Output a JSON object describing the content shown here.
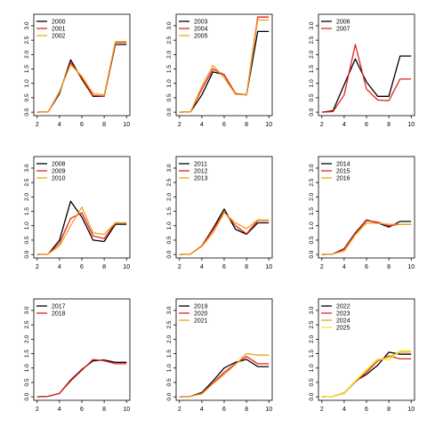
{
  "colors": {
    "black": "#000000",
    "red": "#e8211c",
    "orange": "#f0a020",
    "yellow": "#f2ef30",
    "axis": "#000000"
  },
  "chart_data": [
    {
      "type": "line",
      "x": [
        2,
        3,
        4,
        5,
        6,
        7,
        8,
        9,
        10
      ],
      "ylim": [
        0,
        3.4
      ],
      "yticks": [
        "0.0",
        "0.5",
        "1.0",
        "1.5",
        "2.0",
        "2.5",
        "3.0"
      ],
      "xticks": [
        "2",
        "4",
        "6",
        "8",
        "10"
      ],
      "series": [
        {
          "name": "2000",
          "color": "black",
          "values": [
            0.0,
            0.02,
            0.65,
            1.82,
            1.15,
            0.55,
            0.55,
            2.35,
            2.35
          ]
        },
        {
          "name": "2001",
          "color": "red",
          "values": [
            0.0,
            0.02,
            0.7,
            1.72,
            1.2,
            0.58,
            0.55,
            2.42,
            2.42
          ]
        },
        {
          "name": "2002",
          "color": "orange",
          "values": [
            0.0,
            0.02,
            0.72,
            1.65,
            1.25,
            0.65,
            0.6,
            2.45,
            2.45
          ]
        }
      ]
    },
    {
      "type": "line",
      "x": [
        2,
        3,
        4,
        5,
        6,
        7,
        8,
        9,
        10
      ],
      "ylim": [
        0,
        3.4
      ],
      "yticks": [
        "0.0",
        "0.5",
        "1.0",
        "1.5",
        "2.0",
        "2.5",
        "3.0"
      ],
      "xticks": [
        "2",
        "4",
        "6",
        "8",
        "10"
      ],
      "series": [
        {
          "name": "2003",
          "color": "black",
          "values": [
            0.0,
            0.02,
            0.6,
            1.4,
            1.3,
            0.65,
            0.6,
            2.8,
            2.8
          ]
        },
        {
          "name": "2004",
          "color": "red",
          "values": [
            0.0,
            0.02,
            0.8,
            1.5,
            1.3,
            0.65,
            0.6,
            3.3,
            3.3
          ]
        },
        {
          "name": "2005",
          "color": "orange",
          "values": [
            0.0,
            0.02,
            0.9,
            1.62,
            1.2,
            0.62,
            0.6,
            3.2,
            3.2
          ]
        }
      ]
    },
    {
      "type": "line",
      "x": [
        2,
        3,
        4,
        5,
        6,
        7,
        8,
        9,
        10
      ],
      "ylim": [
        0,
        3.4
      ],
      "yticks": [
        "0.0",
        "0.5",
        "1.0",
        "1.5",
        "2.0",
        "2.5",
        "3.0"
      ],
      "xticks": [
        "2",
        "4",
        "6",
        "8",
        "10"
      ],
      "series": [
        {
          "name": "2006",
          "color": "black",
          "values": [
            0.0,
            0.05,
            0.95,
            1.85,
            1.05,
            0.55,
            0.55,
            1.95,
            1.95
          ]
        },
        {
          "name": "2007",
          "color": "red",
          "values": [
            0.0,
            0.02,
            0.6,
            2.35,
            0.8,
            0.42,
            0.4,
            1.15,
            1.15
          ]
        }
      ]
    },
    {
      "type": "line",
      "x": [
        2,
        3,
        4,
        5,
        6,
        7,
        8,
        9,
        10
      ],
      "ylim": [
        0,
        3.4
      ],
      "yticks": [
        "0.0",
        "0.5",
        "1.0",
        "1.5",
        "2.0",
        "2.5",
        "3.0"
      ],
      "xticks": [
        "2",
        "4",
        "6",
        "8",
        "10"
      ],
      "series": [
        {
          "name": "2008",
          "color": "black",
          "values": [
            0.0,
            0.02,
            0.5,
            1.85,
            1.3,
            0.5,
            0.45,
            1.05,
            1.05
          ]
        },
        {
          "name": "2009",
          "color": "red",
          "values": [
            0.0,
            0.02,
            0.4,
            1.25,
            1.45,
            0.65,
            0.55,
            1.1,
            1.1
          ]
        },
        {
          "name": "2010",
          "color": "orange",
          "values": [
            0.0,
            0.02,
            0.3,
            1.0,
            1.65,
            0.75,
            0.7,
            1.1,
            1.1
          ]
        }
      ]
    },
    {
      "type": "line",
      "x": [
        2,
        3,
        4,
        5,
        6,
        7,
        8,
        9,
        10
      ],
      "ylim": [
        0,
        3.4
      ],
      "yticks": [
        "0.0",
        "0.5",
        "1.0",
        "1.5",
        "2.0",
        "2.5",
        "3.0"
      ],
      "xticks": [
        "2",
        "4",
        "6",
        "8",
        "10"
      ],
      "series": [
        {
          "name": "2011",
          "color": "black",
          "values": [
            0.0,
            0.02,
            0.3,
            0.9,
            1.58,
            0.88,
            0.7,
            1.1,
            1.1
          ]
        },
        {
          "name": "2012",
          "color": "red",
          "values": [
            0.0,
            0.02,
            0.3,
            0.85,
            1.48,
            1.0,
            0.72,
            1.18,
            1.18
          ]
        },
        {
          "name": "2013",
          "color": "orange",
          "values": [
            0.0,
            0.02,
            0.28,
            0.75,
            1.45,
            1.1,
            0.9,
            1.2,
            1.2
          ]
        }
      ]
    },
    {
      "type": "line",
      "x": [
        2,
        3,
        4,
        5,
        6,
        7,
        8,
        9,
        10
      ],
      "ylim": [
        0,
        3.4
      ],
      "yticks": [
        "0.0",
        "0.5",
        "1.0",
        "1.5",
        "2.0",
        "2.5",
        "3.0"
      ],
      "xticks": [
        "2",
        "4",
        "6",
        "8",
        "10"
      ],
      "series": [
        {
          "name": "2014",
          "color": "black",
          "values": [
            0.0,
            0.02,
            0.2,
            0.75,
            1.2,
            1.1,
            0.95,
            1.15,
            1.15
          ]
        },
        {
          "name": "2015",
          "color": "red",
          "values": [
            0.0,
            0.02,
            0.18,
            0.72,
            1.18,
            1.12,
            1.0,
            1.05,
            1.05
          ]
        },
        {
          "name": "2016",
          "color": "orange",
          "values": [
            0.0,
            0.02,
            0.12,
            0.68,
            1.1,
            1.08,
            1.05,
            1.05,
            1.05
          ]
        }
      ]
    },
    {
      "type": "line",
      "x": [
        2,
        3,
        4,
        5,
        6,
        7,
        8,
        9,
        10
      ],
      "ylim": [
        0,
        3.4
      ],
      "yticks": [
        "0.0",
        "0.5",
        "1.0",
        "1.5",
        "2.0",
        "2.5",
        "3.0"
      ],
      "xticks": [
        "2",
        "4",
        "6",
        "8",
        "10"
      ],
      "series": [
        {
          "name": "2017",
          "color": "black",
          "values": [
            0.0,
            0.02,
            0.12,
            0.58,
            0.95,
            1.25,
            1.28,
            1.2,
            1.2
          ]
        },
        {
          "name": "2018",
          "color": "red",
          "values": [
            0.0,
            0.02,
            0.12,
            0.55,
            0.92,
            1.3,
            1.25,
            1.15,
            1.15
          ]
        }
      ]
    },
    {
      "type": "line",
      "x": [
        2,
        3,
        4,
        5,
        6,
        7,
        8,
        9,
        10
      ],
      "ylim": [
        0,
        3.4
      ],
      "yticks": [
        "0.0",
        "0.5",
        "1.0",
        "1.5",
        "2.0",
        "2.5",
        "3.0"
      ],
      "xticks": [
        "2",
        "4",
        "6",
        "8",
        "10"
      ],
      "series": [
        {
          "name": "2019",
          "color": "black",
          "values": [
            0.0,
            0.02,
            0.15,
            0.55,
            1.0,
            1.2,
            1.3,
            1.05,
            1.05
          ]
        },
        {
          "name": "2020",
          "color": "red",
          "values": [
            0.0,
            0.02,
            0.12,
            0.48,
            0.85,
            1.15,
            1.4,
            1.15,
            1.15
          ]
        },
        {
          "name": "2021",
          "color": "orange",
          "values": [
            0.0,
            0.02,
            0.1,
            0.45,
            0.78,
            1.12,
            1.5,
            1.45,
            1.45
          ]
        }
      ]
    },
    {
      "type": "line",
      "x": [
        2,
        3,
        4,
        5,
        6,
        7,
        8,
        9,
        10
      ],
      "ylim": [
        0,
        3.4
      ],
      "yticks": [
        "0.0",
        "0.5",
        "1.0",
        "1.5",
        "2.0",
        "2.5",
        "3.0"
      ],
      "xticks": [
        "2",
        "4",
        "6",
        "8",
        "10"
      ],
      "series": [
        {
          "name": "2022",
          "color": "black",
          "values": [
            0.0,
            0.02,
            0.12,
            0.55,
            0.78,
            1.1,
            1.55,
            1.48,
            1.48
          ]
        },
        {
          "name": "2023",
          "color": "red",
          "values": [
            0.0,
            0.02,
            0.12,
            0.52,
            0.85,
            1.25,
            1.42,
            1.32,
            1.32
          ]
        },
        {
          "name": "2024",
          "color": "orange",
          "values": [
            0.0,
            0.02,
            0.15,
            0.55,
            0.92,
            1.28,
            1.38,
            1.55,
            1.55
          ]
        },
        {
          "name": "2025",
          "color": "yellow",
          "values": [
            0.0,
            0.02,
            0.12,
            0.55,
            0.95,
            1.32,
            1.28,
            1.6,
            1.6
          ]
        }
      ]
    }
  ]
}
